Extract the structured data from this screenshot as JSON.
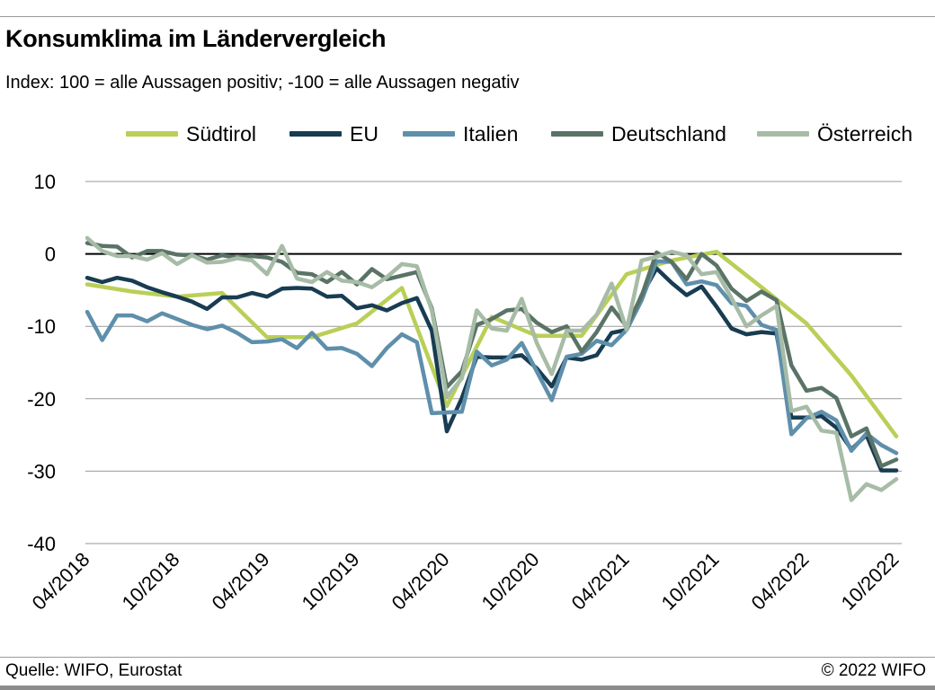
{
  "header": {
    "title": "Konsumklima im Ländervergleich",
    "subtitle": "Index: 100 = alle Aussagen positiv; -100 =  alle Aussagen negativ"
  },
  "footer": {
    "source": "Quelle: WIFO, Eurostat",
    "copyright": "© 2022 WIFO"
  },
  "chart_data": {
    "type": "line",
    "title": "Konsumklima im Ländervergleich",
    "subtitle": "Index: 100 = alle Aussagen positiv; -100 =  alle Aussagen negativ",
    "xlabel": "",
    "ylabel": "",
    "ylim": [
      -40,
      10
    ],
    "yticks": [
      10,
      0,
      -10,
      -20,
      -30,
      -40
    ],
    "grid": true,
    "zero_line": true,
    "legend_position": "top",
    "x_start": "04/2018",
    "x_end": "10/2022",
    "x_tick_labels": [
      "04/2018",
      "10/2018",
      "04/2019",
      "10/2019",
      "04/2020",
      "10/2020",
      "04/2021",
      "10/2021",
      "04/2022",
      "10/2022"
    ],
    "series": [
      {
        "name": "Südtirol",
        "color": "#b9cf57",
        "points": [
          [
            "04/2018",
            -4.2
          ],
          [
            "07/2018",
            -5.2
          ],
          [
            "10/2018",
            -5.9
          ],
          [
            "01/2019",
            -5.4
          ],
          [
            "04/2019",
            -11.5
          ],
          [
            "07/2019",
            -11.5
          ],
          [
            "10/2019",
            -9.6
          ],
          [
            "01/2020",
            -4.7
          ],
          [
            "04/2020",
            -21.0
          ],
          [
            "07/2020",
            -8.7
          ],
          [
            "10/2020",
            -11.3
          ],
          [
            "01/2021",
            -11.3
          ],
          [
            "04/2021",
            -2.8
          ],
          [
            "07/2021",
            -0.9
          ],
          [
            "10/2021",
            0.3
          ],
          [
            "01/2022",
            -4.6
          ],
          [
            "04/2022",
            -9.6
          ],
          [
            "07/2022",
            -16.8
          ],
          [
            "10/2022",
            -25.2
          ]
        ]
      },
      {
        "name": "EU",
        "color": "#183c52",
        "points": [
          [
            "04/2018",
            -3.3
          ],
          [
            "05/2018",
            -3.9
          ],
          [
            "06/2018",
            -3.3
          ],
          [
            "07/2018",
            -3.7
          ],
          [
            "08/2018",
            -4.6
          ],
          [
            "09/2018",
            -5.3
          ],
          [
            "10/2018",
            -5.9
          ],
          [
            "11/2018",
            -6.6
          ],
          [
            "12/2018",
            -7.6
          ],
          [
            "01/2019",
            -6.0
          ],
          [
            "02/2019",
            -6.0
          ],
          [
            "03/2019",
            -5.4
          ],
          [
            "04/2019",
            -5.9
          ],
          [
            "05/2019",
            -4.8
          ],
          [
            "06/2019",
            -4.7
          ],
          [
            "07/2019",
            -4.8
          ],
          [
            "08/2019",
            -5.9
          ],
          [
            "09/2019",
            -5.8
          ],
          [
            "10/2019",
            -7.5
          ],
          [
            "11/2019",
            -7.1
          ],
          [
            "12/2019",
            -7.8
          ],
          [
            "01/2020",
            -6.8
          ],
          [
            "02/2020",
            -6.1
          ],
          [
            "03/2020",
            -10.6
          ],
          [
            "04/2020",
            -24.5
          ],
          [
            "05/2020",
            -19.9
          ],
          [
            "06/2020",
            -14.2
          ],
          [
            "07/2020",
            -14.3
          ],
          [
            "08/2020",
            -14.3
          ],
          [
            "09/2020",
            -14.0
          ],
          [
            "10/2020",
            -15.8
          ],
          [
            "11/2020",
            -18.3
          ],
          [
            "12/2020",
            -14.3
          ],
          [
            "01/2021",
            -14.6
          ],
          [
            "02/2021",
            -14.0
          ],
          [
            "03/2021",
            -10.9
          ],
          [
            "04/2021",
            -10.5
          ],
          [
            "05/2021",
            -5.7
          ],
          [
            "06/2021",
            -2.0
          ],
          [
            "07/2021",
            -4.0
          ],
          [
            "08/2021",
            -5.7
          ],
          [
            "09/2021",
            -4.5
          ],
          [
            "10/2021",
            -7.3
          ],
          [
            "11/2021",
            -10.3
          ],
          [
            "12/2021",
            -11.1
          ],
          [
            "01/2022",
            -10.8
          ],
          [
            "02/2022",
            -11.0
          ],
          [
            "03/2022",
            -22.6
          ],
          [
            "04/2022",
            -22.6
          ],
          [
            "05/2022",
            -22.4
          ],
          [
            "06/2022",
            -24.0
          ],
          [
            "07/2022",
            -27.0
          ],
          [
            "08/2022",
            -25.0
          ],
          [
            "09/2022",
            -29.9
          ],
          [
            "10/2022",
            -29.9
          ]
        ]
      },
      {
        "name": "Italien",
        "color": "#5e8fab",
        "points": [
          [
            "04/2018",
            -8.0
          ],
          [
            "05/2018",
            -11.9
          ],
          [
            "06/2018",
            -8.5
          ],
          [
            "07/2018",
            -8.5
          ],
          [
            "08/2018",
            -9.3
          ],
          [
            "09/2018",
            -8.2
          ],
          [
            "10/2018",
            -9.0
          ],
          [
            "11/2018",
            -9.8
          ],
          [
            "12/2018",
            -10.4
          ],
          [
            "01/2019",
            -9.9
          ],
          [
            "02/2019",
            -10.9
          ],
          [
            "03/2019",
            -12.2
          ],
          [
            "04/2019",
            -12.1
          ],
          [
            "05/2019",
            -11.8
          ],
          [
            "06/2019",
            -13.0
          ],
          [
            "07/2019",
            -10.9
          ],
          [
            "08/2019",
            -13.1
          ],
          [
            "09/2019",
            -13.0
          ],
          [
            "10/2019",
            -13.8
          ],
          [
            "11/2019",
            -15.5
          ],
          [
            "12/2019",
            -13.0
          ],
          [
            "01/2020",
            -11.1
          ],
          [
            "02/2020",
            -12.2
          ],
          [
            "03/2020",
            -22.0
          ],
          [
            "04/2020",
            -21.9
          ],
          [
            "05/2020",
            -21.8
          ],
          [
            "06/2020",
            -13.5
          ],
          [
            "07/2020",
            -15.4
          ],
          [
            "08/2020",
            -14.6
          ],
          [
            "09/2020",
            -12.3
          ],
          [
            "10/2020",
            -16.2
          ],
          [
            "11/2020",
            -20.2
          ],
          [
            "12/2020",
            -14.2
          ],
          [
            "01/2021",
            -13.8
          ],
          [
            "02/2021",
            -12.0
          ],
          [
            "03/2021",
            -12.6
          ],
          [
            "04/2021",
            -10.5
          ],
          [
            "05/2021",
            -6.4
          ],
          [
            "06/2021",
            -1.0
          ],
          [
            "07/2021",
            -1.1
          ],
          [
            "08/2021",
            -4.2
          ],
          [
            "09/2021",
            -3.8
          ],
          [
            "10/2021",
            -4.3
          ],
          [
            "11/2021",
            -6.8
          ],
          [
            "12/2021",
            -7.2
          ],
          [
            "01/2022",
            -9.8
          ],
          [
            "02/2022",
            -10.5
          ],
          [
            "03/2022",
            -24.9
          ],
          [
            "04/2022",
            -22.7
          ],
          [
            "05/2022",
            -21.8
          ],
          [
            "06/2022",
            -23.0
          ],
          [
            "07/2022",
            -27.2
          ],
          [
            "08/2022",
            -24.8
          ],
          [
            "09/2022",
            -26.4
          ],
          [
            "10/2022",
            -27.5
          ]
        ]
      },
      {
        "name": "Deutschland",
        "color": "#5a7366",
        "points": [
          [
            "04/2018",
            1.5
          ],
          [
            "05/2018",
            1.1
          ],
          [
            "06/2018",
            1.0
          ],
          [
            "07/2018",
            -0.5
          ],
          [
            "08/2018",
            0.4
          ],
          [
            "09/2018",
            0.4
          ],
          [
            "10/2018",
            -0.1
          ],
          [
            "11/2018",
            -0.2
          ],
          [
            "12/2018",
            -0.8
          ],
          [
            "01/2019",
            -0.2
          ],
          [
            "02/2019",
            -0.5
          ],
          [
            "03/2019",
            -0.3
          ],
          [
            "04/2019",
            -0.5
          ],
          [
            "05/2019",
            -1.1
          ],
          [
            "06/2019",
            -2.6
          ],
          [
            "07/2019",
            -2.8
          ],
          [
            "08/2019",
            -3.9
          ],
          [
            "09/2019",
            -2.5
          ],
          [
            "10/2019",
            -4.2
          ],
          [
            "11/2019",
            -2.1
          ],
          [
            "12/2019",
            -3.5
          ],
          [
            "01/2020",
            -3.0
          ],
          [
            "02/2020",
            -2.5
          ],
          [
            "03/2020",
            -7.5
          ],
          [
            "04/2020",
            -18.4
          ],
          [
            "05/2020",
            -16.2
          ],
          [
            "06/2020",
            -9.8
          ],
          [
            "07/2020",
            -9.0
          ],
          [
            "08/2020",
            -7.8
          ],
          [
            "09/2020",
            -7.6
          ],
          [
            "10/2020",
            -9.5
          ],
          [
            "11/2020",
            -10.8
          ],
          [
            "12/2020",
            -10.0
          ],
          [
            "01/2021",
            -13.5
          ],
          [
            "02/2021",
            -10.8
          ],
          [
            "03/2021",
            -7.4
          ],
          [
            "04/2021",
            -10.0
          ],
          [
            "05/2021",
            -5.8
          ],
          [
            "06/2021",
            0.2
          ],
          [
            "07/2021",
            -1.1
          ],
          [
            "08/2021",
            -3.5
          ],
          [
            "09/2021",
            0.0
          ],
          [
            "10/2021",
            -1.6
          ],
          [
            "11/2021",
            -4.8
          ],
          [
            "12/2021",
            -6.5
          ],
          [
            "01/2022",
            -5.2
          ],
          [
            "02/2022",
            -6.4
          ],
          [
            "03/2022",
            -15.4
          ],
          [
            "04/2022",
            -18.9
          ],
          [
            "05/2022",
            -18.5
          ],
          [
            "06/2022",
            -19.9
          ],
          [
            "07/2022",
            -25.2
          ],
          [
            "08/2022",
            -24.1
          ],
          [
            "09/2022",
            -29.3
          ],
          [
            "10/2022",
            -28.4
          ]
        ]
      },
      {
        "name": "Österreich",
        "color": "#a7bca6",
        "points": [
          [
            "04/2018",
            2.2
          ],
          [
            "05/2018",
            0.4
          ],
          [
            "06/2018",
            -0.3
          ],
          [
            "07/2018",
            -0.3
          ],
          [
            "08/2018",
            -0.8
          ],
          [
            "09/2018",
            0.1
          ],
          [
            "10/2018",
            -1.4
          ],
          [
            "11/2018",
            -0.2
          ],
          [
            "12/2018",
            -1.2
          ],
          [
            "01/2019",
            -1.1
          ],
          [
            "02/2019",
            -0.6
          ],
          [
            "03/2019",
            -0.9
          ],
          [
            "04/2019",
            -2.8
          ],
          [
            "05/2019",
            1.1
          ],
          [
            "06/2019",
            -3.4
          ],
          [
            "07/2019",
            -3.9
          ],
          [
            "08/2019",
            -2.5
          ],
          [
            "09/2019",
            -3.7
          ],
          [
            "10/2019",
            -3.9
          ],
          [
            "11/2019",
            -4.6
          ],
          [
            "12/2019",
            -3.2
          ],
          [
            "01/2020",
            -1.4
          ],
          [
            "02/2020",
            -1.7
          ],
          [
            "03/2020",
            -7.8
          ],
          [
            "04/2020",
            -19.7
          ],
          [
            "05/2020",
            -17.2
          ],
          [
            "06/2020",
            -7.8
          ],
          [
            "07/2020",
            -10.3
          ],
          [
            "08/2020",
            -10.6
          ],
          [
            "09/2020",
            -6.2
          ],
          [
            "10/2020",
            -12.3
          ],
          [
            "11/2020",
            -16.6
          ],
          [
            "12/2020",
            -10.6
          ],
          [
            "01/2021",
            -10.6
          ],
          [
            "02/2021",
            -8.4
          ],
          [
            "03/2021",
            -4.1
          ],
          [
            "04/2021",
            -10.5
          ],
          [
            "05/2021",
            -0.9
          ],
          [
            "06/2021",
            -0.4
          ],
          [
            "07/2021",
            0.3
          ],
          [
            "08/2021",
            -0.2
          ],
          [
            "09/2021",
            -2.8
          ],
          [
            "10/2021",
            -2.5
          ],
          [
            "11/2021",
            -6.1
          ],
          [
            "12/2021",
            -10.0
          ],
          [
            "01/2022",
            -8.5
          ],
          [
            "02/2022",
            -7.2
          ],
          [
            "03/2022",
            -21.7
          ],
          [
            "04/2022",
            -21.1
          ],
          [
            "05/2022",
            -24.4
          ],
          [
            "06/2022",
            -24.7
          ],
          [
            "07/2022",
            -34.0
          ],
          [
            "08/2022",
            -31.8
          ],
          [
            "09/2022",
            -32.6
          ],
          [
            "10/2022",
            -31.1
          ]
        ]
      }
    ]
  }
}
